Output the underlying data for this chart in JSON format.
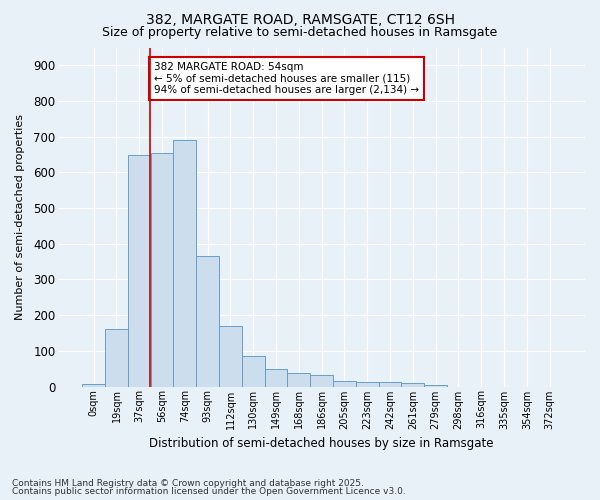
{
  "title1": "382, MARGATE ROAD, RAMSGATE, CT12 6SH",
  "title2": "Size of property relative to semi-detached houses in Ramsgate",
  "xlabel": "Distribution of semi-detached houses by size in Ramsgate",
  "ylabel": "Number of semi-detached properties",
  "bar_labels": [
    "0sqm",
    "19sqm",
    "37sqm",
    "56sqm",
    "74sqm",
    "93sqm",
    "112sqm",
    "130sqm",
    "149sqm",
    "168sqm",
    "186sqm",
    "205sqm",
    "223sqm",
    "242sqm",
    "261sqm",
    "279sqm",
    "298sqm",
    "316sqm",
    "335sqm",
    "354sqm",
    "372sqm"
  ],
  "bar_values": [
    8,
    160,
    650,
    655,
    690,
    365,
    170,
    85,
    50,
    37,
    32,
    15,
    13,
    13,
    10,
    4,
    0,
    0,
    0,
    0,
    0
  ],
  "bar_color": "#ccdded",
  "bar_edge_color": "#6a9ec5",
  "vline_x": 2.47,
  "vline_color": "#cc0000",
  "annotation_text": "382 MARGATE ROAD: 54sqm\n← 5% of semi-detached houses are smaller (115)\n94% of semi-detached houses are larger (2,134) →",
  "annotation_box_color": "#ffffff",
  "annotation_box_edge": "#cc0000",
  "ylim": [
    0,
    950
  ],
  "yticks": [
    0,
    100,
    200,
    300,
    400,
    500,
    600,
    700,
    800,
    900
  ],
  "footer1": "Contains HM Land Registry data © Crown copyright and database right 2025.",
  "footer2": "Contains public sector information licensed under the Open Government Licence v3.0.",
  "bg_color": "#e8f0f8",
  "plot_bg": "#e8f0f8",
  "title1_fontsize": 10,
  "title2_fontsize": 9
}
